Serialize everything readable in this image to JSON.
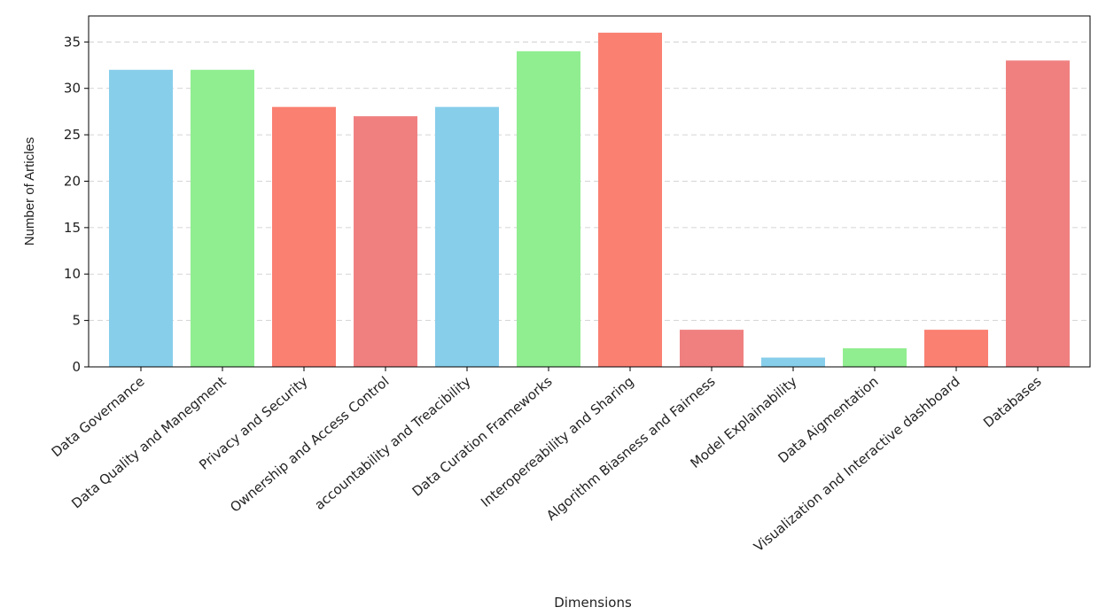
{
  "chart_data": {
    "type": "bar",
    "title": "",
    "xlabel": "Dimensions",
    "ylabel": "Number of Articles",
    "categories": [
      "Data Governance",
      "Data Quality and Manegment",
      "Privacy and Security",
      "Ownership and Access Control",
      "accountability and Treacibility",
      "Data Curation Frameworks",
      "Interopereability and Sharing",
      "Algorithm Biasness and Fairness",
      "Model Explainability",
      "Data Aigmentation",
      "Visualization and Interactive dashboard",
      "Databases"
    ],
    "values": [
      32,
      32,
      28,
      27,
      28,
      34,
      36,
      4,
      1,
      2,
      4,
      33
    ],
    "colors": [
      "#87ceeb",
      "#90ee90",
      "#fa8072",
      "#f08080",
      "#87ceeb",
      "#90ee90",
      "#fa8072",
      "#f08080",
      "#87ceeb",
      "#90ee90",
      "#fa8072",
      "#f08080"
    ],
    "ylim": [
      0,
      37.8
    ],
    "yticks": [
      0,
      5,
      10,
      15,
      20,
      25,
      30,
      35
    ],
    "grid": "y-dashed",
    "legend": "none"
  }
}
